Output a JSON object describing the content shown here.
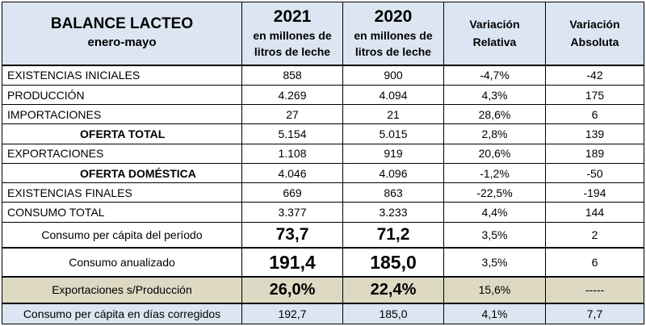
{
  "header": {
    "title": "BALANCE LACTEO",
    "subtitle": "enero-mayo",
    "year1": "2021",
    "year1_unit_a": "en millones de",
    "year1_unit_b": "litros de leche",
    "year2": "2020",
    "year2_unit_a": "en millones de",
    "year2_unit_b": "litros de leche",
    "var_rel_a": "Variación",
    "var_rel_b": "Relativa",
    "var_abs_a": "Variación",
    "var_abs_b": "Absoluta"
  },
  "rows": [
    {
      "label": "EXISTENCIAS  INICIALES",
      "v2021": "858",
      "v2020": "900",
      "rel": "-4,7%",
      "abs": "-42"
    },
    {
      "label": "PRODUCCIÓN",
      "v2021": "4.269",
      "v2020": "4.094",
      "rel": "4,3%",
      "abs": "175"
    },
    {
      "label": "IMPORTACIONES",
      "v2021": "27",
      "v2020": "21",
      "rel": "28,6%",
      "abs": "6"
    },
    {
      "label": "OFERTA TOTAL",
      "v2021": "5.154",
      "v2020": "5.015",
      "rel": "2,8%",
      "abs": "139"
    },
    {
      "label": "EXPORTACIONES",
      "v2021": "1.108",
      "v2020": "919",
      "rel": "20,6%",
      "abs": "189"
    },
    {
      "label": "OFERTA DOMÉSTICA",
      "v2021": "4.046",
      "v2020": "4.096",
      "rel": "-1,2%",
      "abs": "-50"
    },
    {
      "label": "EXISTENCIAS FINALES",
      "v2021": "669",
      "v2020": "863",
      "rel": "-22,5%",
      "abs": "-194"
    },
    {
      "label": "CONSUMO TOTAL",
      "v2021": "3.377",
      "v2020": "3.233",
      "rel": "4,4%",
      "abs": "144"
    }
  ],
  "capita": {
    "label": "Consumo per cápita del período",
    "v2021": "73,7",
    "v2020": "71,2",
    "rel": "3,5%",
    "abs": "2"
  },
  "anual": {
    "label": "Consumo anualizado",
    "v2021": "191,4",
    "v2020": "185,0",
    "rel": "3,5%",
    "abs": "6"
  },
  "expo": {
    "label": "Exportaciones s/Producción",
    "v2021": "26,0%",
    "v2020": "22,4%",
    "rel": "15,6%",
    "abs": "-----"
  },
  "dias": {
    "label": "Consumo per cápita en días corregidos",
    "v2021": "192,7",
    "v2020": "185,0",
    "rel": "4,1%",
    "abs": "7,7"
  }
}
